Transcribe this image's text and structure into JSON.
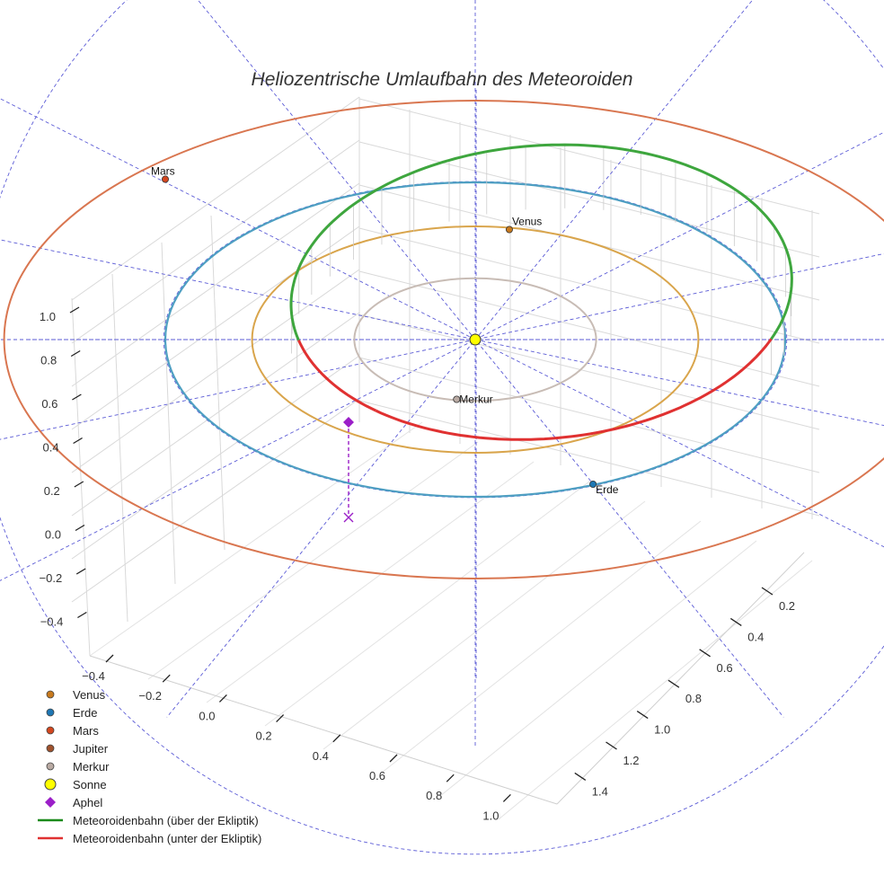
{
  "chart_data": {
    "type": "scatter3d",
    "title": "Heliozentrische Umlaufbahn des Meteoroiden",
    "x_ticks": [
      "−0.4",
      "−0.2",
      "0.0",
      "0.2",
      "0.4",
      "0.6",
      "0.8",
      "1.0"
    ],
    "y_ticks": [
      "0.2",
      "0.4",
      "0.6",
      "0.8",
      "1.0",
      "1.2",
      "1.4"
    ],
    "z_ticks": [
      "1.0",
      "0.8",
      "0.6",
      "0.4",
      "0.2",
      "0.0",
      "−0.2",
      "−0.4"
    ],
    "bodies": [
      {
        "name": "Venus",
        "label": "Venus",
        "orbit_au": 0.72,
        "color": "#c87a1e"
      },
      {
        "name": "Erde",
        "label": "Erde",
        "orbit_au": 1.0,
        "color": "#1f77b4"
      },
      {
        "name": "Mars",
        "label": "Mars",
        "orbit_au": 1.52,
        "color": "#d4471f"
      },
      {
        "name": "Merkur",
        "label": "Merkur",
        "orbit_au": 0.39,
        "color": "#b9aaa3"
      }
    ],
    "orbit_colors": {
      "Venus": "#d9a54c",
      "Erde": "#4e9fc2",
      "Mars": "#d97650",
      "Merkur": "#c8bcb5"
    },
    "meteoroid_orbit": {
      "a_au": 0.85,
      "e": 0.4,
      "inclination_deg": 12,
      "color_above": "#3ea63e",
      "color_below": "#e03131"
    },
    "aphel": {
      "label": "Aphel",
      "color": "#9b1fc8"
    },
    "legend": [
      {
        "label": "Venus",
        "symbol": "dot",
        "color": "#c87a1e"
      },
      {
        "label": "Erde",
        "symbol": "dot",
        "color": "#1f77b4"
      },
      {
        "label": "Mars",
        "symbol": "dot",
        "color": "#d4471f"
      },
      {
        "label": "Jupiter",
        "symbol": "dot",
        "color": "#a0522d"
      },
      {
        "label": "Merkur",
        "symbol": "dot",
        "color": "#b9aaa3"
      },
      {
        "label": "Sonne",
        "symbol": "big-dot",
        "color": "#ffff00"
      },
      {
        "label": "Aphel",
        "symbol": "diamond",
        "color": "#9b1fc8"
      },
      {
        "label": "Meteoroidenbahn (über der Ekliptik)",
        "symbol": "line",
        "color": "#1b8a1b"
      },
      {
        "label": "Meteoroidenbahn (unter der Ekliptik)",
        "symbol": "line",
        "color": "#e03131"
      }
    ]
  }
}
